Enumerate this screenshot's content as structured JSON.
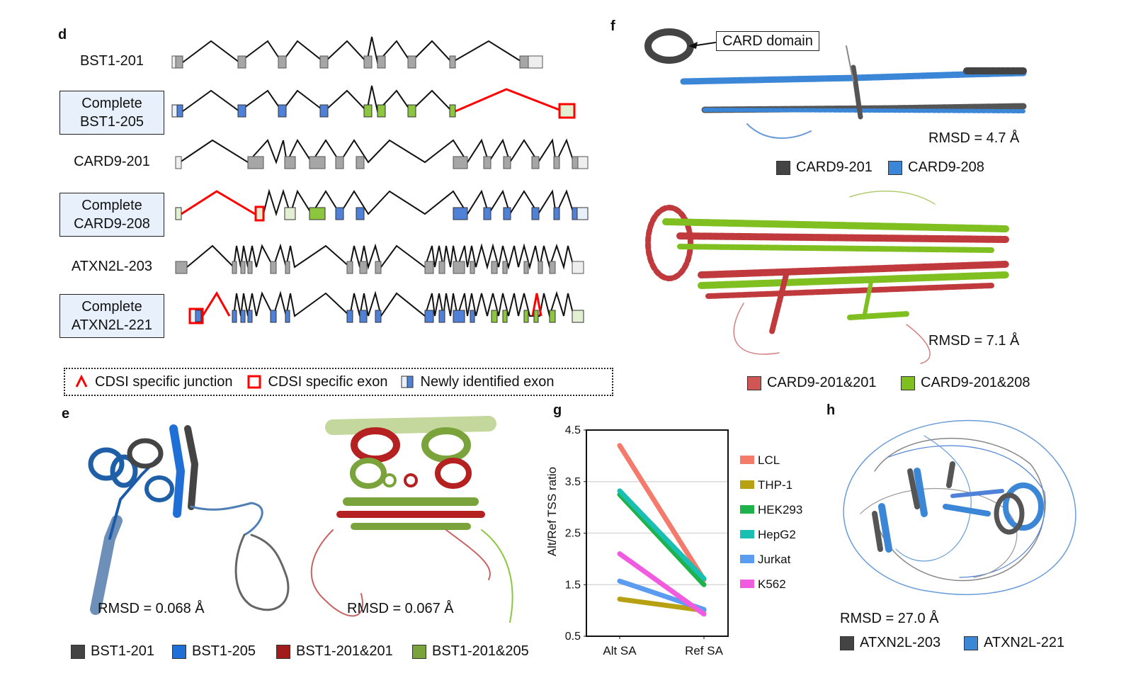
{
  "panels": {
    "d": "d",
    "e": "e",
    "f": "f",
    "g": "g",
    "h": "h"
  },
  "panel_d": {
    "transcripts": [
      {
        "label": "BST1-201",
        "boxed": false
      },
      {
        "label_lines": [
          "Complete",
          "BST1-205"
        ],
        "boxed": true
      },
      {
        "label": "CARD9-201",
        "boxed": false
      },
      {
        "label_lines": [
          "Complete",
          "CARD9-208"
        ],
        "boxed": true
      },
      {
        "label": "ATXN2L-203",
        "boxed": false
      },
      {
        "label_lines": [
          "Complete",
          "ATXN2L-221"
        ],
        "boxed": true
      }
    ],
    "legend": {
      "junction": "CDSI specific junction",
      "exon": "CDSI specific exon",
      "new_exon": "Newly identified exon"
    },
    "colors": {
      "ref_exon": "#a6a6a6",
      "new_exon": "#4f81d9",
      "green_exon": "#8cc63e",
      "pale_exon": "#e2efd0",
      "cdsi": "#ff0000"
    }
  },
  "panel_e": {
    "rmsd_left": "RMSD = 0.068 Å",
    "rmsd_right": "RMSD = 0.067 Å",
    "legend": [
      {
        "label": "BST1-201",
        "color": "#444444"
      },
      {
        "label": "BST1-205",
        "color": "#1f6fd6"
      },
      {
        "label": "BST1-201&201",
        "color": "#a31c1c"
      },
      {
        "label": "BST1-201&205",
        "color": "#7aa33b"
      }
    ]
  },
  "panel_f": {
    "callout": "CARD domain",
    "rmsd_top": "RMSD = 4.7 Å",
    "rmsd_bottom": "RMSD = 7.1 Å",
    "legend_top": [
      {
        "label": "CARD9-201",
        "color": "#444444"
      },
      {
        "label": "CARD9-208",
        "color": "#3b86d6"
      }
    ],
    "legend_bottom": [
      {
        "label": "CARD9-201&201",
        "color": "#d05555"
      },
      {
        "label": "CARD9-201&208",
        "color": "#7fbf20"
      }
    ]
  },
  "panel_h": {
    "rmsd": "RMSD = 27.0 Å",
    "legend": [
      {
        "label": "ATXN2L-203",
        "color": "#444444"
      },
      {
        "label": "ATXN2L-221",
        "color": "#3b86d6"
      }
    ]
  },
  "chart_data": {
    "type": "line",
    "categories": [
      "Alt SA",
      "Ref SA"
    ],
    "ylabel": "Alt/Ref TSS ratio",
    "ylim": [
      0.5,
      4.5
    ],
    "yticks": [
      "0.5",
      "1.5",
      "2.5",
      "3.5",
      "4.5"
    ],
    "grid": true,
    "legend_position": "right",
    "series": [
      {
        "name": "LCL",
        "values": [
          4.2,
          1.6
        ],
        "color": "#f47a6c"
      },
      {
        "name": "THP-1",
        "values": [
          1.22,
          1.0
        ],
        "color": "#b8a013"
      },
      {
        "name": "HEK293",
        "values": [
          3.25,
          1.5
        ],
        "color": "#1fb24a"
      },
      {
        "name": "HepG2",
        "values": [
          3.32,
          1.62
        ],
        "color": "#19bfb2"
      },
      {
        "name": "Jurkat",
        "values": [
          1.57,
          1.02
        ],
        "color": "#5b9cf0"
      },
      {
        "name": "K562",
        "values": [
          2.1,
          0.93
        ],
        "color": "#f05be0"
      }
    ]
  }
}
